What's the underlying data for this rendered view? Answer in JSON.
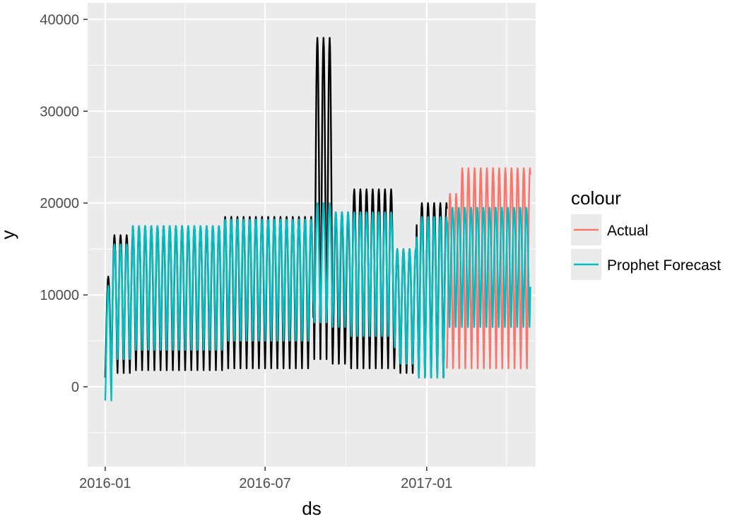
{
  "chart_data": {
    "type": "line",
    "title": "",
    "xlabel": "ds",
    "ylabel": "y",
    "x_ticks": [
      "2016-01",
      "2016-07",
      "2017-01"
    ],
    "y_ticks": [
      0,
      10000,
      20000,
      30000,
      40000
    ],
    "x_range": [
      "2015-12-12",
      "2017-05-05"
    ],
    "ylim": [
      -8700,
      41800
    ],
    "grid": true,
    "legend": {
      "title": "colour",
      "placement": "right",
      "entries": [
        {
          "name": "Actual",
          "color": "#F8766D"
        },
        {
          "name": "Prophet Forecast",
          "color": "#00BFC4"
        }
      ]
    },
    "series": [
      {
        "name": "",
        "color": "#000000",
        "start": "2016-01-01",
        "end": "2017-01-24",
        "period_days": 7,
        "segments": [
          {
            "to": "2016-01-08",
            "low": 1000,
            "high": 12000
          },
          {
            "to": "2016-02-01",
            "low": 1500,
            "high": 16500
          },
          {
            "to": "2016-05-15",
            "low": 1800,
            "high": 17500
          },
          {
            "to": "2016-08-25",
            "low": 2000,
            "high": 18500
          },
          {
            "to": "2016-09-15",
            "low": 3000,
            "high": 38000
          },
          {
            "to": "2016-10-05",
            "low": 2500,
            "high": 19000
          },
          {
            "to": "2016-11-25",
            "low": 2000,
            "high": 21500
          },
          {
            "to": "2016-12-20",
            "low": 1500,
            "high": 15000
          },
          {
            "to": "2017-01-24",
            "low": 1000,
            "high": 20000
          }
        ]
      },
      {
        "name": "Actual",
        "color": "#F8766D",
        "start": "2017-01-24",
        "end": "2017-04-29",
        "period_days": 7,
        "segments": [
          {
            "to": "2017-02-05",
            "low": 2000,
            "high": 21000
          },
          {
            "to": "2017-04-29",
            "low": 2000,
            "high": 23800
          }
        ]
      },
      {
        "name": "Prophet Forecast",
        "color": "#00BFC4",
        "start": "2016-01-01",
        "end": "2017-04-29",
        "period_days": 7,
        "segments": [
          {
            "to": "2016-01-08",
            "low": -1500,
            "high": 11000
          },
          {
            "to": "2016-02-01",
            "low": 3000,
            "high": 15500
          },
          {
            "to": "2016-05-15",
            "low": 4000,
            "high": 17500
          },
          {
            "to": "2016-08-25",
            "low": 5000,
            "high": 18200
          },
          {
            "to": "2016-09-15",
            "low": 7000,
            "high": 20000
          },
          {
            "to": "2016-10-05",
            "low": 6500,
            "high": 19000
          },
          {
            "to": "2016-11-25",
            "low": 5500,
            "high": 19000
          },
          {
            "to": "2016-12-20",
            "low": 2500,
            "high": 15000
          },
          {
            "to": "2017-01-24",
            "low": 1000,
            "high": 18500
          },
          {
            "to": "2017-04-29",
            "low": 6500,
            "high": 19500
          }
        ]
      }
    ]
  }
}
